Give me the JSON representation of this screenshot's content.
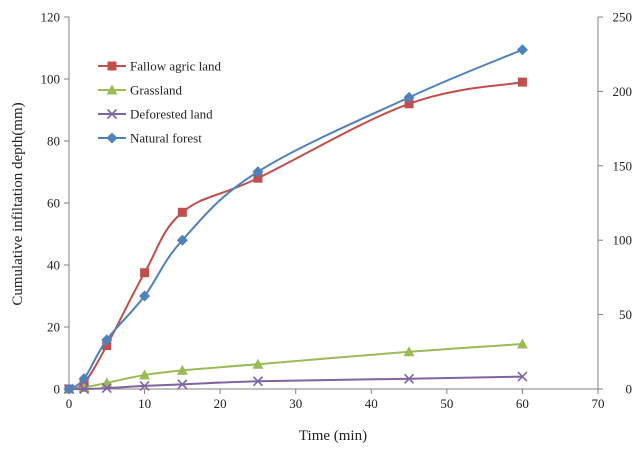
{
  "chart_data": {
    "type": "line",
    "title": "",
    "xlabel": "Time (min)",
    "ylabel": "Cumulative infiltation depth(mm)",
    "y2label": "",
    "xlim": [
      0,
      70
    ],
    "ylim": [
      0,
      120
    ],
    "y2lim": [
      0,
      250
    ],
    "xticks": [
      0,
      10,
      20,
      30,
      40,
      50,
      60,
      70
    ],
    "yticks": [
      0,
      20,
      40,
      60,
      80,
      100,
      120
    ],
    "y2ticks": [
      0,
      50,
      100,
      150,
      200,
      250
    ],
    "grid": false,
    "legend_position": "top-left",
    "series": [
      {
        "name": "Fallow agric land",
        "color": "#c0504d",
        "marker": "square",
        "axis": "left",
        "x": [
          0,
          2,
          5,
          10,
          15,
          25,
          45,
          60
        ],
        "y": [
          0,
          2,
          14,
          37.5,
          57,
          68,
          92,
          99
        ]
      },
      {
        "name": "Grassland",
        "color": "#9bbb59",
        "marker": "triangle",
        "axis": "left",
        "x": [
          0,
          2,
          5,
          10,
          15,
          25,
          45,
          60
        ],
        "y": [
          0,
          0.5,
          2,
          4.5,
          6,
          8,
          12,
          14.5
        ]
      },
      {
        "name": "Deforested land",
        "color": "#8064a2",
        "marker": "x",
        "axis": "left",
        "x": [
          0,
          2,
          5,
          10,
          15,
          25,
          45,
          60
        ],
        "y": [
          0,
          0,
          0.3,
          1,
          1.5,
          2.5,
          3.3,
          4
        ]
      },
      {
        "name": "Natural forest",
        "color": "#4f81bd",
        "marker": "diamond",
        "axis": "right",
        "x": [
          0,
          2,
          5,
          10,
          15,
          25,
          45,
          60
        ],
        "y": [
          0,
          7,
          33,
          62.5,
          100,
          146,
          196,
          228
        ]
      }
    ]
  }
}
